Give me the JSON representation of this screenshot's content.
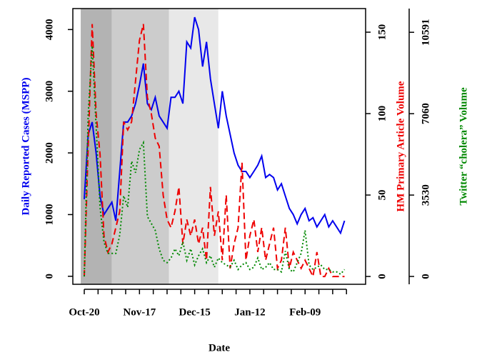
{
  "chart_data": {
    "type": "line",
    "xlabel": "Date",
    "ylabel": "Daily Reported Cases (MSPP)",
    "y2label": "HM Primary Article Volume",
    "y3label": "Twitter “cholera” Volume",
    "x": [
      0,
      2,
      4,
      6,
      8,
      10,
      12,
      14,
      16,
      18,
      20,
      22,
      24,
      26,
      28,
      30,
      32,
      34,
      36,
      38,
      40,
      42,
      44,
      46,
      48,
      50,
      52,
      54,
      56,
      58,
      60,
      62,
      64,
      66,
      68,
      70,
      72,
      74,
      76,
      78,
      80,
      82,
      84,
      86,
      88,
      90,
      92,
      94,
      96,
      98,
      100,
      102,
      104,
      106,
      108,
      110,
      112,
      114,
      116,
      118,
      120,
      122,
      124,
      126,
      128,
      130,
      132
    ],
    "xlim": [
      -5.8,
      142.7
    ],
    "xticks": [
      {
        "value": 0,
        "label": "Oct-20"
      },
      {
        "value": 28,
        "label": "Nov-17"
      },
      {
        "value": 56,
        "label": "Dec-15"
      },
      {
        "value": 84,
        "label": "Jan-12"
      },
      {
        "value": 112,
        "label": "Feb-09"
      }
    ],
    "xminorticks": [
      7,
      14,
      21,
      35,
      42,
      49,
      63,
      70,
      77,
      91,
      98,
      105,
      119,
      126,
      133
    ],
    "ylim": [
      -130,
      4340
    ],
    "yticks": [
      0,
      1000,
      2000,
      3000,
      4000
    ],
    "y2lim": [
      -4.8,
      164.5
    ],
    "y2ticks": [
      0,
      50,
      100,
      150
    ],
    "y3lim": [
      -340,
      11620
    ],
    "y3ticks": [
      0,
      3530,
      7060,
      10591
    ],
    "shaded_regions": [
      {
        "start": -1.8,
        "end": 14,
        "color": "#b3b3b3"
      },
      {
        "start": 14,
        "end": 43,
        "color": "#cccccc"
      },
      {
        "start": 43,
        "end": 68,
        "color": "#e8e8e8"
      }
    ],
    "series": [
      {
        "name": "Daily Reported Cases (MSPP)",
        "color": "#0000ee",
        "linestyle": "solid",
        "axis": "y",
        "values": [
          1250,
          2300,
          2500,
          2000,
          1300,
          1000,
          1100,
          1200,
          900,
          1700,
          2500,
          2500,
          2600,
          2800,
          3100,
          3450,
          2800,
          2700,
          2900,
          2600,
          2500,
          2400,
          2900,
          2900,
          3000,
          2800,
          3800,
          3700,
          4200,
          4000,
          3400,
          3800,
          3200,
          2800,
          2400,
          3000,
          2600,
          2300,
          2000,
          1800,
          1700,
          1700,
          1600,
          1700,
          1800,
          1950,
          1600,
          1650,
          1600,
          1400,
          1500,
          1300,
          1100,
          1000,
          850,
          1000,
          1100,
          900,
          950,
          800,
          900,
          1000,
          800,
          900,
          800,
          700,
          900
        ]
      },
      {
        "name": "HM Primary Article Volume",
        "color": "#ee0000",
        "linestyle": "dashed",
        "axis": "y2",
        "values": [
          0,
          80,
          155,
          100,
          75,
          25,
          15,
          20,
          30,
          40,
          95,
          90,
          95,
          120,
          145,
          155,
          110,
          100,
          85,
          80,
          50,
          35,
          30,
          40,
          55,
          20,
          35,
          25,
          35,
          20,
          30,
          10,
          55,
          25,
          40,
          10,
          50,
          5,
          20,
          30,
          70,
          10,
          25,
          35,
          15,
          30,
          10,
          20,
          30,
          5,
          10,
          30,
          5,
          15,
          10,
          5,
          10,
          5,
          0,
          15,
          0,
          0,
          5,
          0,
          0,
          0,
          0
        ]
      },
      {
        "name": "Twitter “cholera” Volume",
        "color": "#008800",
        "linestyle": "dotted",
        "axis": "y3",
        "values": [
          0,
          7000,
          10000,
          6500,
          3000,
          1500,
          1000,
          1000,
          1000,
          1800,
          3500,
          3000,
          5000,
          4500,
          5500,
          5800,
          2600,
          2300,
          2000,
          1200,
          700,
          600,
          800,
          1200,
          900,
          1500,
          700,
          1200,
          500,
          900,
          1200,
          600,
          900,
          400,
          800,
          600,
          500,
          400,
          700,
          300,
          500,
          600,
          300,
          400,
          800,
          300,
          400,
          600,
          300,
          300,
          200,
          1100,
          300,
          200,
          600,
          1000,
          2000,
          500,
          300,
          400,
          500,
          300,
          300,
          200,
          200,
          100,
          300
        ]
      }
    ]
  }
}
